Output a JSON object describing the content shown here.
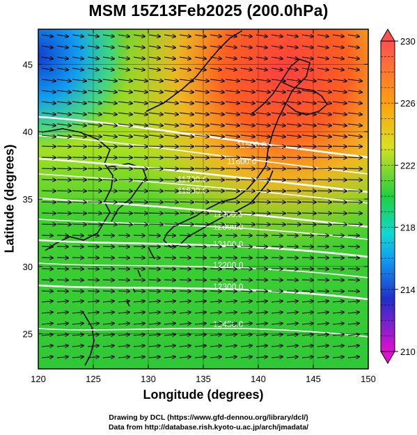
{
  "title": "MSM 15Z13Feb2025 (200.0hPa)",
  "axes": {
    "xlabel": "Longitude (degrees)",
    "ylabel": "Latitude  (degrees)",
    "x_ticks": [
      "120",
      "125",
      "130",
      "135",
      "140",
      "145",
      "150"
    ],
    "y_ticks": [
      "25",
      "30",
      "35",
      "40",
      "45"
    ],
    "x_range": [
      120,
      150
    ],
    "y_range": [
      22.4,
      47.6
    ]
  },
  "colorbar": {
    "tick_labels": [
      "230",
      "226",
      "222",
      "218",
      "214",
      "210"
    ],
    "range": [
      210,
      230
    ],
    "colors": [
      "#e010d0",
      "#1020c0",
      "#00b8ff",
      "#20d040",
      "#e8e020",
      "#ff8010",
      "#ff5050"
    ]
  },
  "contours": [
    {
      "label": "11500.0"
    },
    {
      "label": "11600.0"
    },
    {
      "label": "11700.0"
    },
    {
      "label": "11800.0"
    },
    {
      "label": "11900.0"
    },
    {
      "label": "12000.0"
    },
    {
      "label": "12100.0"
    },
    {
      "label": "12200.0"
    },
    {
      "label": "12300.0"
    },
    {
      "label": "12450.0"
    }
  ],
  "credits": {
    "line1": "Drawing by DCL (https://www.gfd-dennou.org/library/dcl/)",
    "line2": "Data from http://database.rish.kyoto-u.ac.jp/arch/jmadata/"
  }
}
